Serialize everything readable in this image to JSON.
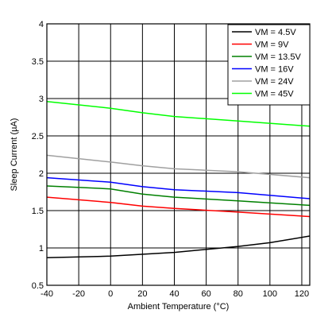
{
  "chart_data": {
    "type": "line",
    "title": "",
    "xlabel": "Ambient Temperature (°C)",
    "ylabel": "Sleep Current (µA)",
    "xlim": [
      -40,
      125
    ],
    "ylim": [
      0.5,
      4
    ],
    "xticks": [
      -40,
      -20,
      0,
      20,
      40,
      60,
      80,
      100,
      120
    ],
    "yticks": [
      0.5,
      1,
      1.5,
      2,
      2.5,
      3,
      3.5,
      4
    ],
    "xtick_labels": [
      "-40",
      "-20",
      "0",
      "20",
      "40",
      "60",
      "80",
      "100",
      "120"
    ],
    "ytick_labels": [
      "0.5",
      "1",
      "1.5",
      "2",
      "2.5",
      "3",
      "3.5",
      "4"
    ],
    "grid": true,
    "legend_position": "top-right",
    "series": [
      {
        "name": "VM = 4.5V",
        "color": "#000000",
        "x": [
          -40,
          0,
          40,
          80,
          100,
          125
        ],
        "y": [
          0.87,
          0.89,
          0.94,
          1.02,
          1.07,
          1.16
        ]
      },
      {
        "name": "VM = 9V",
        "color": "#ff0000",
        "x": [
          -40,
          0,
          20,
          40,
          80,
          125
        ],
        "y": [
          1.68,
          1.61,
          1.56,
          1.53,
          1.48,
          1.42
        ]
      },
      {
        "name": "VM = 13.5V",
        "color": "#008000",
        "x": [
          -40,
          0,
          20,
          40,
          80,
          125
        ],
        "y": [
          1.83,
          1.79,
          1.72,
          1.68,
          1.63,
          1.57
        ]
      },
      {
        "name": "VM = 16V",
        "color": "#0000ff",
        "x": [
          -40,
          0,
          20,
          40,
          80,
          125
        ],
        "y": [
          1.94,
          1.88,
          1.82,
          1.78,
          1.74,
          1.66
        ]
      },
      {
        "name": "VM = 24V",
        "color": "#a0a0a0",
        "x": [
          -40,
          0,
          20,
          40,
          80,
          125
        ],
        "y": [
          2.24,
          2.15,
          2.1,
          2.06,
          2.02,
          1.94
        ]
      },
      {
        "name": "VM = 45V",
        "color": "#00ff00",
        "x": [
          -40,
          0,
          20,
          40,
          80,
          125
        ],
        "y": [
          2.96,
          2.87,
          2.81,
          2.76,
          2.7,
          2.63
        ]
      }
    ]
  }
}
